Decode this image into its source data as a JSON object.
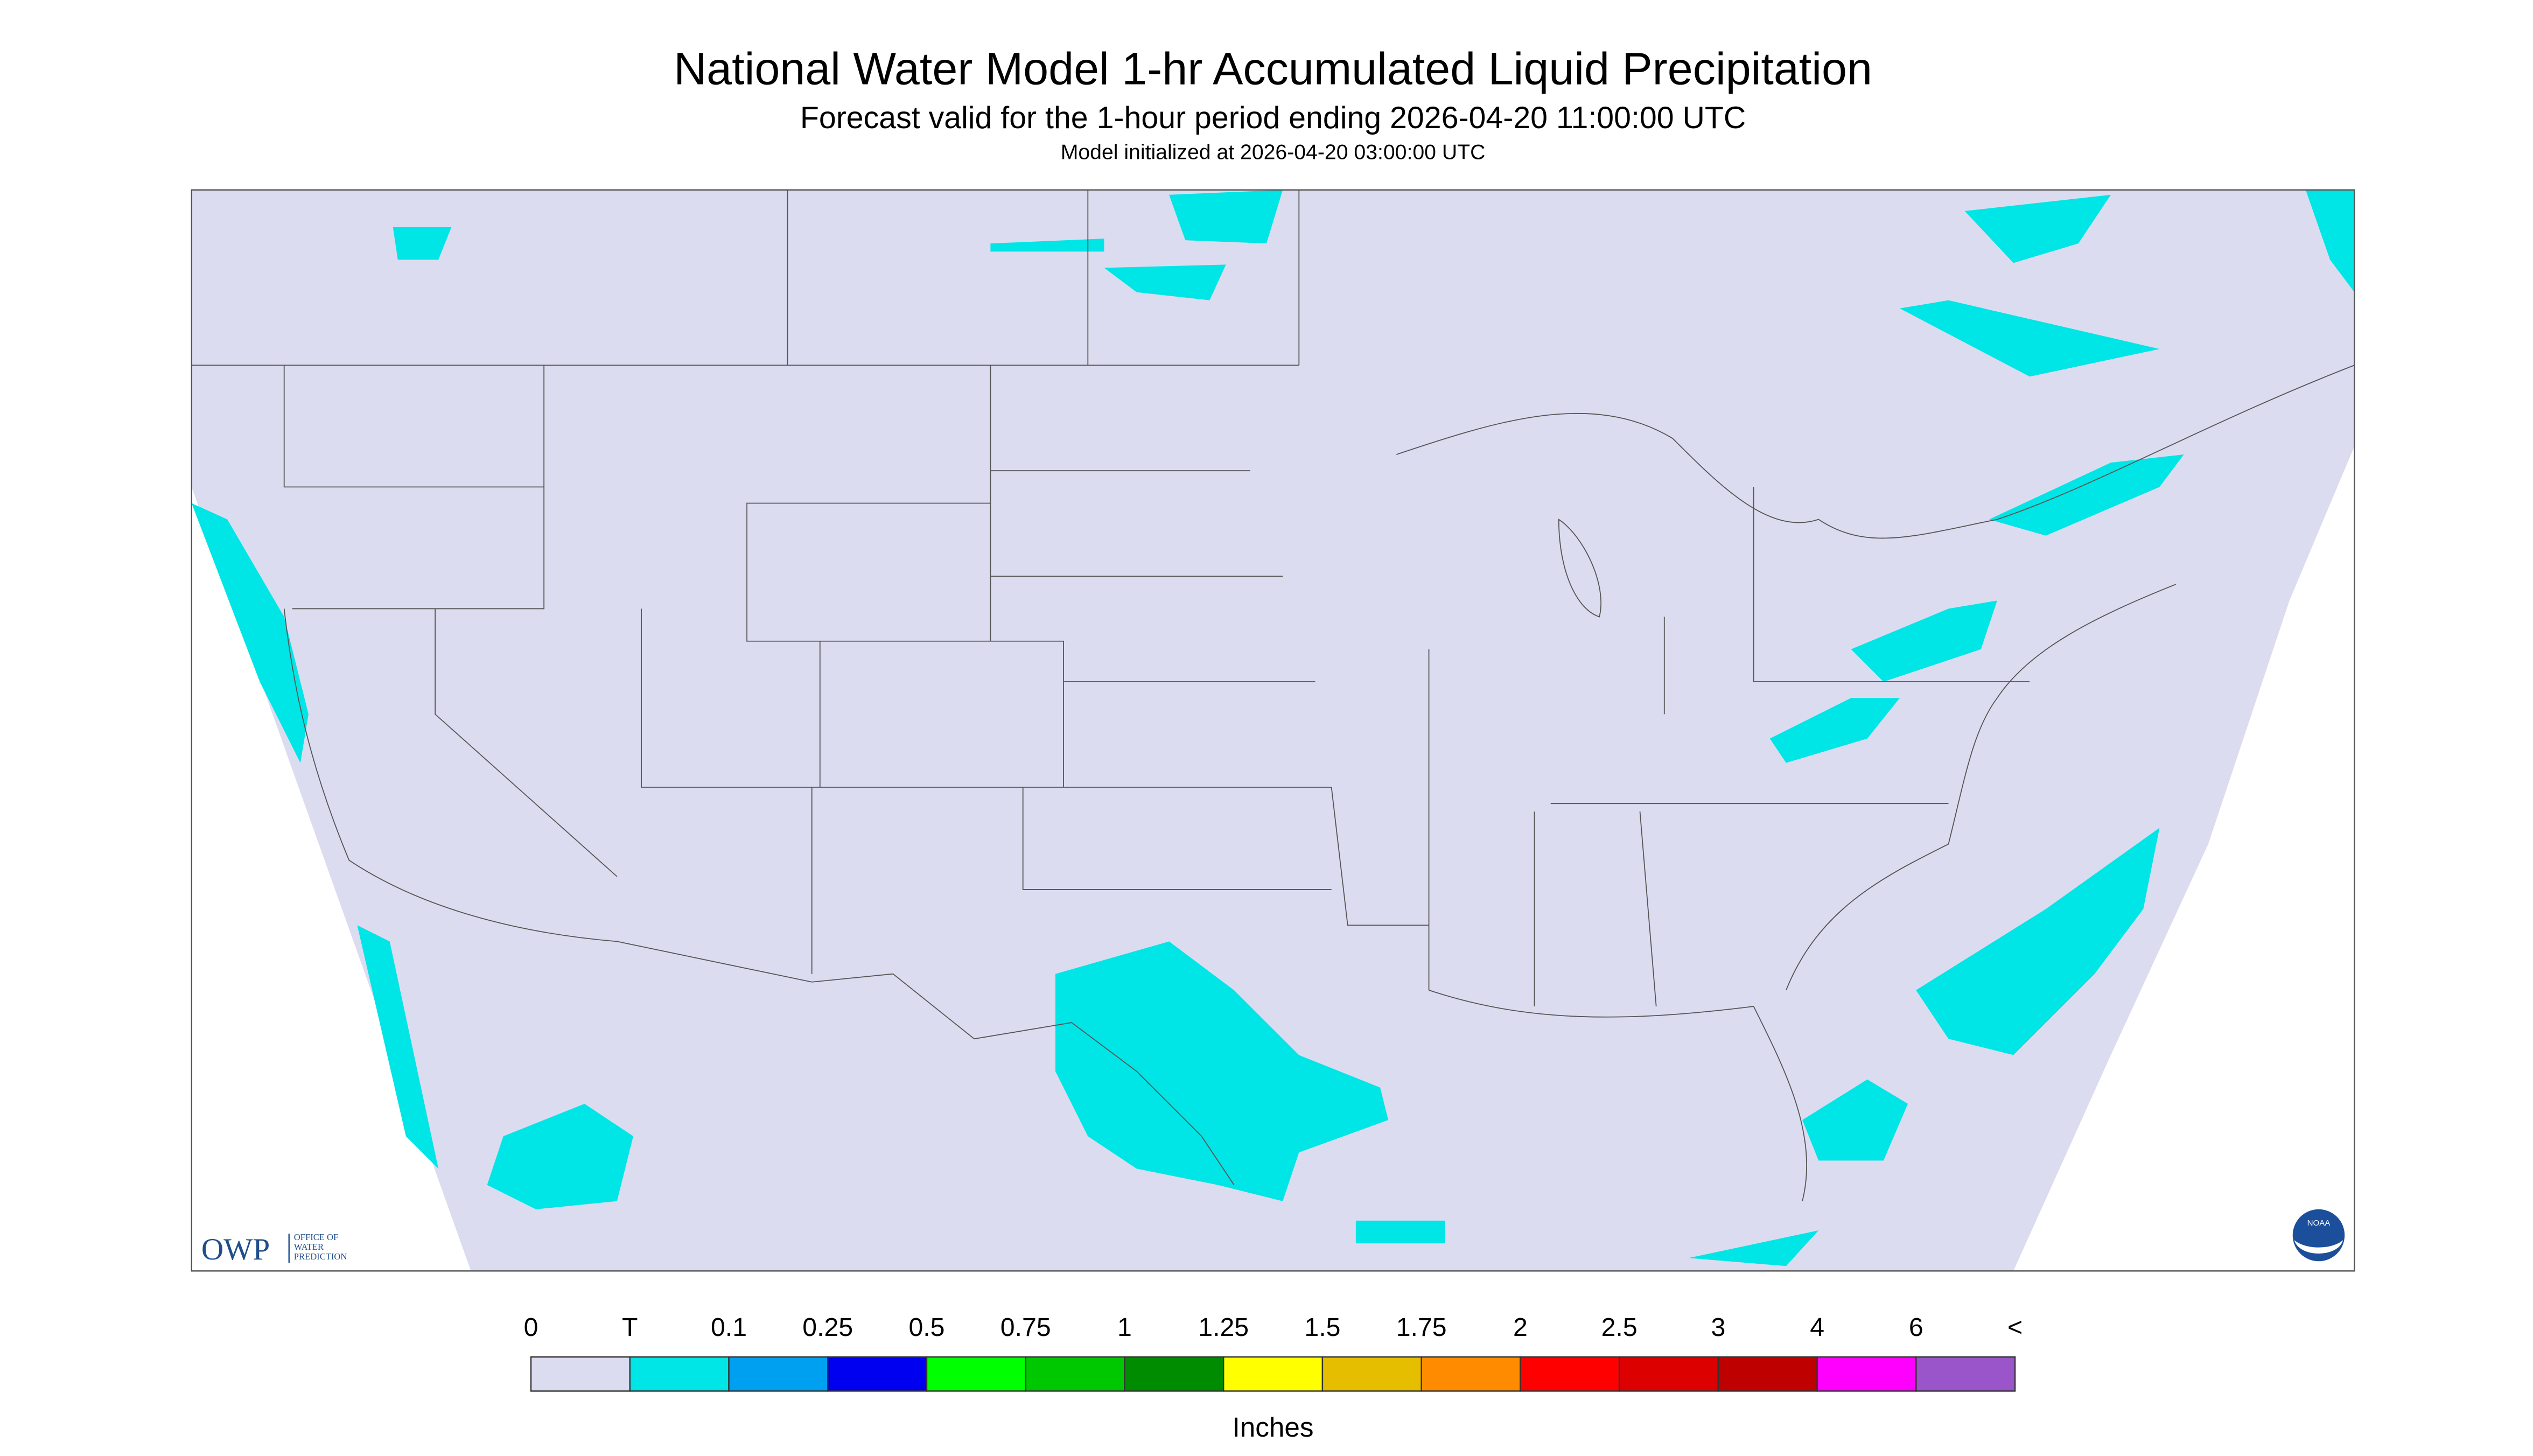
{
  "header": {
    "title": "National Water Model 1-hr Accumulated Liquid Precipitation",
    "subtitle": "Forecast valid for the 1-hour period ending 2026-04-20 11:00:00 UTC",
    "note": "Model initialized at 2026-04-20 03:00:00 UTC"
  },
  "logos": {
    "owp": "OWP",
    "owp_text": [
      "OFFICE OF",
      "WATER",
      "PREDICTION"
    ],
    "noaa": "NOAA"
  },
  "legend": {
    "labels": [
      "0",
      "T",
      "0.1",
      "0.25",
      "0.5",
      "0.75",
      "1",
      "1.25",
      "1.5",
      "1.75",
      "2",
      "2.5",
      "3",
      "4",
      "6",
      "<"
    ],
    "colors": [
      "#dcdcf0",
      "#00e5e5",
      "#00a0f0",
      "#0000f0",
      "#00ff00",
      "#00c800",
      "#008c00",
      "#ffff00",
      "#e6be00",
      "#ff8c00",
      "#ff0000",
      "#dc0000",
      "#be0000",
      "#ff00ff",
      "#9955c9"
    ],
    "unit": "Inches"
  }
}
